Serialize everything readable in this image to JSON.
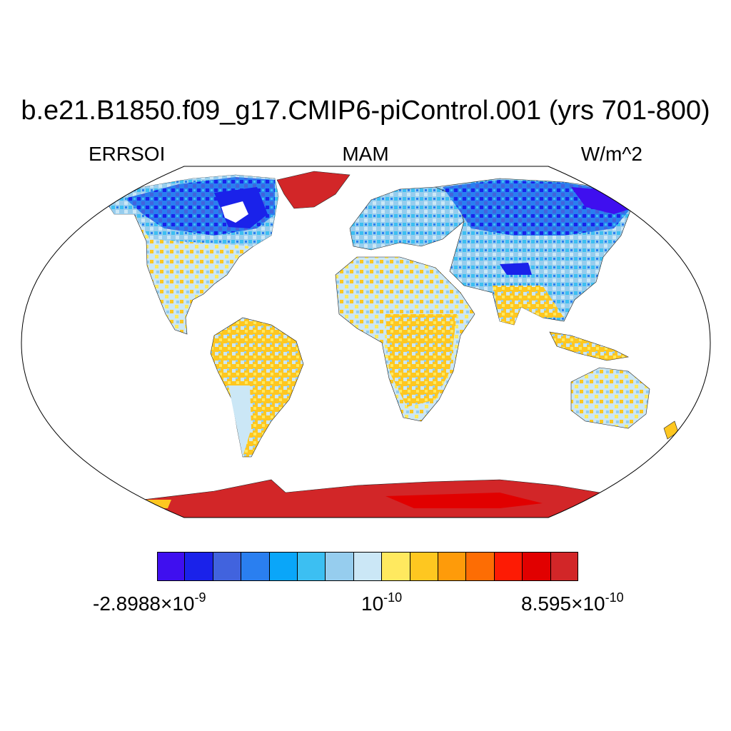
{
  "title": "b.e21.B1850.f09_g17.CMIP6-piControl.001 (yrs 701-800)",
  "subtitle_left": "ERRSOI",
  "subtitle_center": "MAM",
  "subtitle_right": "W/m^2",
  "colorbar": {
    "colors": [
      "#3f0fef",
      "#1a22ea",
      "#4163de",
      "#2a7ff0",
      "#0aa6f9",
      "#3cbff2",
      "#96cdee",
      "#cbe7f6",
      "#ffe95f",
      "#fec720",
      "#fe9b0a",
      "#fd6d04",
      "#fd1b04",
      "#e10000",
      "#d22628"
    ],
    "label_min_mantissa": "-2.8988",
    "label_min_exponent": "-9",
    "label_mid_base": "10",
    "label_mid_exponent": "-10",
    "label_max_mantissa": "8.595",
    "label_max_exponent": "-10",
    "times_symbol": "×"
  },
  "map": {
    "projection": "Robinson",
    "ocean_color": "#ffffff",
    "land_colors": {
      "high_latitude_north": "#2a7ff0",
      "arctic_core": "#1a22ea",
      "temperate": "#cbe7f6",
      "subtropical": "#fec720",
      "greenland": "#d22628",
      "antarctica": "#d22628"
    }
  }
}
